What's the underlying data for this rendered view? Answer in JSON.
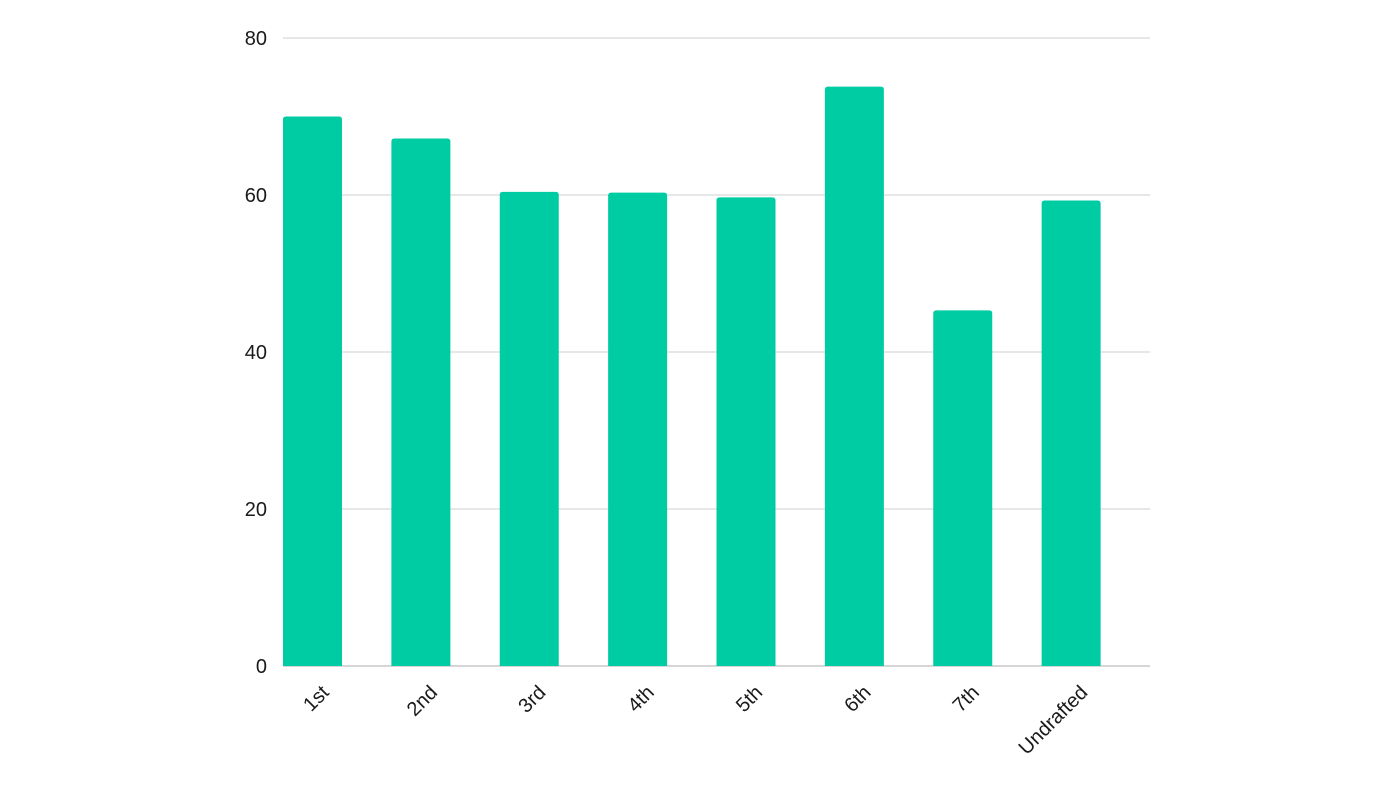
{
  "chart_data": {
    "type": "bar",
    "title": "",
    "xlabel": "",
    "ylabel": "",
    "categories": [
      "1st",
      "2nd",
      "3rd",
      "4th",
      "5th",
      "6th",
      "7th",
      "Undrafted"
    ],
    "values": [
      70,
      67.2,
      60.4,
      60.3,
      59.7,
      73.8,
      45.3,
      59.3
    ],
    "ylim": [
      0,
      80
    ],
    "yticks": [
      0,
      20,
      40,
      60,
      80
    ],
    "grid": true,
    "legend": "none",
    "bar_color": "#00CCA3"
  }
}
